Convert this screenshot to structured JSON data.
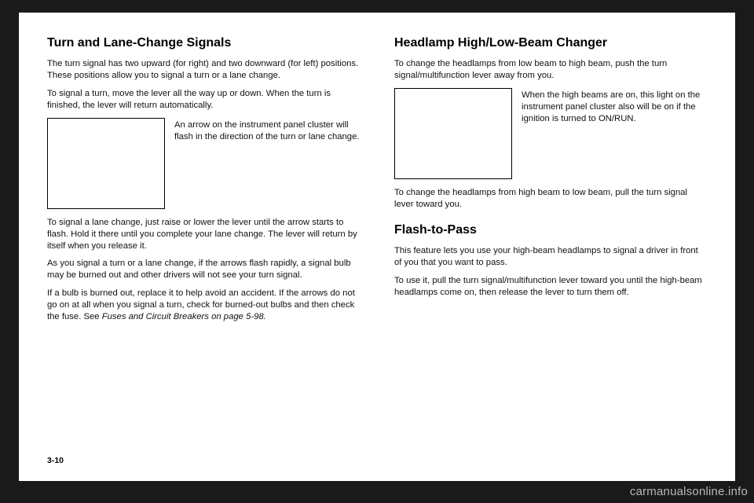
{
  "left": {
    "h1": "Turn and Lane-Change Signals",
    "p1": "The turn signal has two upward (for right) and two downward (for left) positions. These positions allow you to signal a turn or a lane change.",
    "p2": "To signal a turn, move the lever all the way up or down. When the turn is finished, the lever will return automatically.",
    "figcap1": "An arrow on the instrument panel cluster will flash in the direction of the turn or lane change.",
    "p3": "To signal a lane change, just raise or lower the lever until the arrow starts to flash. Hold it there until you complete your lane change. The lever will return by itself when you release it.",
    "p4": "As you signal a turn or a lane change, if the arrows flash rapidly, a signal bulb may be burned out and other drivers will not see your turn signal.",
    "p5a": "If a bulb is burned out, replace it to help avoid an accident. If the arrows do not go on at all when you signal a turn, check for burned-out bulbs and then check the fuse. See ",
    "p5b": "Fuses and Circuit Breakers on page 5-98.",
    "pagefoot": "3-10"
  },
  "right": {
    "h1": "Headlamp High/Low-Beam Changer",
    "p1": "To change the headlamps from low beam to high beam, push the turn signal/multifunction lever away from you.",
    "figcap1": "When the high beams are on, this light on the instrument panel cluster also will be on if the ignition is turned to ON/RUN.",
    "p2": "To change the headlamps from high beam to low beam, pull the turn signal lever toward you.",
    "h2": "Flash-to-Pass",
    "p3": "This feature lets you use your high-beam headlamps to signal a driver in front of you that you want to pass.",
    "p4": "To use it, pull the turn signal/multifunction lever toward you until the high-beam headlamps come on, then release the lever to turn them off."
  },
  "watermark": "carmanualsonline.info"
}
